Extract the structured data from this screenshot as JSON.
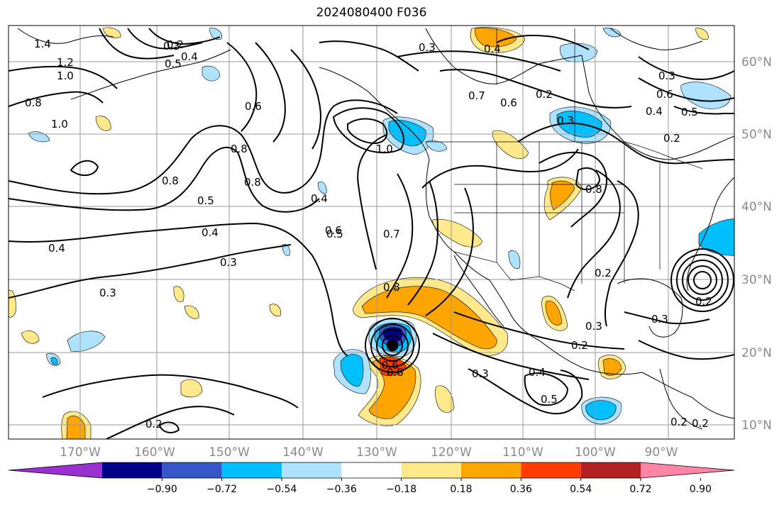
{
  "title": "2024080400 F036",
  "lat_labels": [
    "60°N",
    "50°N",
    "40°N",
    "30°N",
    "20°N",
    "10°N"
  ],
  "lon_labels": [
    "170°W",
    "160°W",
    "150°W",
    "140°W",
    "130°W",
    "120°W",
    "110°W",
    "100°W",
    "90°W"
  ],
  "colorbar": {
    "tick_labels": [
      "−0.90",
      "−0.72",
      "−0.54",
      "−0.36",
      "−0.18",
      "0.18",
      "0.36",
      "0.54",
      "0.72",
      "0.90"
    ],
    "colors": [
      "#9b30d0",
      "#000088",
      "#3656c8",
      "#00bfff",
      "#aee2ff",
      "#ffffff",
      "#ffe98a",
      "#ffa500",
      "#ff3c00",
      "#b22222",
      "#ff85a8"
    ]
  },
  "contour_labels": [
    "1.4",
    "1.2",
    "1.0",
    "0.8",
    "1.0",
    "0.8",
    "0.5",
    "0.4",
    "0.3",
    "0.2",
    "0.4",
    "0.3",
    "0.3",
    "0.2",
    "0.4",
    "0.5",
    "0.6",
    "0.8",
    "0.8",
    "0.7",
    "0.6",
    "0.7",
    "0.6",
    "0.3",
    "0.4",
    "0.2",
    "0.3",
    "0.8",
    "0.8",
    "0.4",
    "0.5",
    "0.2",
    "0.3",
    "0.2",
    "0.3",
    "0.4",
    "0.5",
    "0.3",
    "0.2",
    "0.2",
    "0.6",
    "0.8",
    "1.0",
    "0.3",
    "0.2",
    "0.6",
    "0.4",
    "0.5",
    "0.2"
  ]
}
